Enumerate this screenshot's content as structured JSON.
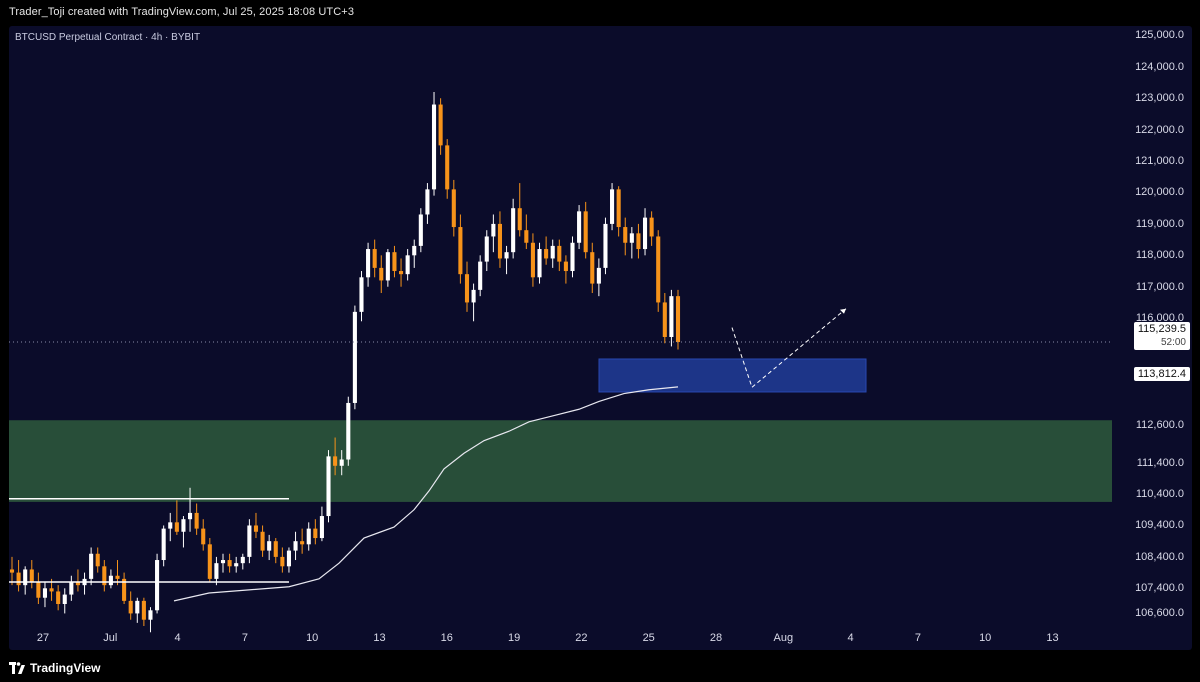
{
  "header": {
    "attribution": "Trader_Toji created with TradingView.com, Jul 25, 2025 18:08 UTC+3"
  },
  "chart": {
    "symbol_label": "BTCUSD Perpetual Contract · 4h · BYBIT",
    "current_price": "115,239.5",
    "countdown": "52:00",
    "ma_value": "113,812.4",
    "colors": {
      "background": "#0b0c2a",
      "up_candle": "#ffffff",
      "down_candle": "#f7931a",
      "demand_zone": "#2e5a3c",
      "target_zone": "#1f3a93",
      "moving_average": "#e8e8f0"
    }
  },
  "price_axis": {
    "ticks": [
      "125,000.0",
      "124,000.0",
      "123,000.0",
      "122,000.0",
      "121,000.0",
      "120,000.0",
      "119,000.0",
      "118,000.0",
      "117,000.0",
      "116,000.0",
      "112,600.0",
      "111,400.0",
      "110,400.0",
      "109,400.0",
      "108,400.0",
      "107,400.0",
      "106,600.0"
    ]
  },
  "time_axis": {
    "ticks": [
      "27",
      "Jul",
      "4",
      "7",
      "10",
      "13",
      "16",
      "19",
      "22",
      "25",
      "28",
      "Aug",
      "4",
      "7",
      "10",
      "13"
    ]
  },
  "footer": {
    "brand": "TradingView"
  },
  "chart_data": {
    "type": "candlestick",
    "title": "BTCUSD Perpetual Contract · 4h · BYBIT",
    "timeframe": "4h",
    "x_labels": [
      "27",
      "Jul",
      "4",
      "7",
      "10",
      "13",
      "16",
      "19",
      "22",
      "25",
      "28",
      "Aug",
      "4",
      "7",
      "10",
      "13"
    ],
    "ylim": [
      106200,
      125300
    ],
    "last_price": 115239.5,
    "moving_average_last": 113812.4,
    "zones": [
      {
        "name": "demand-zone",
        "low": 110150,
        "high": 112750,
        "color": "#2e5a3c"
      },
      {
        "name": "target-zone",
        "low": 113650,
        "high": 114700,
        "color": "#1f3a93"
      }
    ],
    "horizontal_levels": [
      110250,
      107600
    ],
    "projection": [
      [
        0,
        115700
      ],
      [
        1,
        113800
      ],
      [
        2,
        116300
      ]
    ],
    "candles": [
      [
        108000,
        108400,
        107500,
        107900
      ],
      [
        107900,
        108300,
        107300,
        107500
      ],
      [
        107500,
        108100,
        107200,
        108000
      ],
      [
        108000,
        108300,
        107400,
        107600
      ],
      [
        107600,
        107900,
        106900,
        107100
      ],
      [
        107100,
        107600,
        106800,
        107400
      ],
      [
        107400,
        107700,
        107000,
        107300
      ],
      [
        107300,
        107500,
        106700,
        106900
      ],
      [
        106900,
        107400,
        106600,
        107200
      ],
      [
        107200,
        107800,
        107000,
        107600
      ],
      [
        107600,
        108000,
        107300,
        107500
      ],
      [
        107500,
        107900,
        107200,
        107700
      ],
      [
        107700,
        108700,
        107500,
        108500
      ],
      [
        108500,
        108700,
        107900,
        108100
      ],
      [
        108100,
        108300,
        107300,
        107500
      ],
      [
        107500,
        108000,
        107400,
        107800
      ],
      [
        107800,
        108300,
        107500,
        107700
      ],
      [
        107700,
        107900,
        106900,
        107000
      ],
      [
        107000,
        107300,
        106400,
        106600
      ],
      [
        106600,
        107100,
        106300,
        107000
      ],
      [
        107000,
        107100,
        106200,
        106400
      ],
      [
        106400,
        106800,
        106000,
        106700
      ],
      [
        106700,
        108500,
        106600,
        108300
      ],
      [
        108300,
        109400,
        108100,
        109300
      ],
      [
        109300,
        109800,
        108900,
        109500
      ],
      [
        109500,
        110200,
        109100,
        109200
      ],
      [
        109200,
        109700,
        108700,
        109600
      ],
      [
        109600,
        110600,
        109200,
        109800
      ],
      [
        109800,
        110100,
        109100,
        109300
      ],
      [
        109300,
        109600,
        108600,
        108800
      ],
      [
        108800,
        109000,
        107600,
        107700
      ],
      [
        107700,
        108400,
        107500,
        108200
      ],
      [
        108200,
        108500,
        107900,
        108300
      ],
      [
        108300,
        108500,
        107900,
        108100
      ],
      [
        108100,
        108400,
        107900,
        108200
      ],
      [
        108200,
        108500,
        108000,
        108400
      ],
      [
        108400,
        109600,
        108200,
        109400
      ],
      [
        109400,
        109800,
        109000,
        109200
      ],
      [
        109200,
        109400,
        108400,
        108600
      ],
      [
        108600,
        109100,
        108300,
        108900
      ],
      [
        108900,
        109000,
        108200,
        108400
      ],
      [
        108400,
        108700,
        107900,
        108100
      ],
      [
        108100,
        108700,
        107900,
        108600
      ],
      [
        108600,
        109200,
        108300,
        108900
      ],
      [
        108900,
        109300,
        108500,
        108800
      ],
      [
        108800,
        109500,
        108600,
        109300
      ],
      [
        109300,
        109600,
        108800,
        109000
      ],
      [
        109000,
        110000,
        108900,
        109700
      ],
      [
        109700,
        111800,
        109500,
        111600
      ],
      [
        111600,
        112200,
        111000,
        111300
      ],
      [
        111300,
        111800,
        111000,
        111500
      ],
      [
        111500,
        113500,
        111300,
        113300
      ],
      [
        113300,
        116400,
        113100,
        116200
      ],
      [
        116200,
        117500,
        115900,
        117300
      ],
      [
        117300,
        118400,
        117000,
        118200
      ],
      [
        118200,
        118500,
        117300,
        117600
      ],
      [
        117600,
        118000,
        116800,
        117200
      ],
      [
        117200,
        118200,
        117000,
        118100
      ],
      [
        118100,
        118300,
        117300,
        117500
      ],
      [
        117500,
        117900,
        117000,
        117400
      ],
      [
        117400,
        118200,
        117200,
        118000
      ],
      [
        118000,
        118500,
        117600,
        118300
      ],
      [
        118300,
        119500,
        118100,
        119300
      ],
      [
        119300,
        120300,
        119000,
        120100
      ],
      [
        120100,
        123200,
        119900,
        122800
      ],
      [
        122800,
        123000,
        121200,
        121500
      ],
      [
        121500,
        121700,
        119800,
        120100
      ],
      [
        120100,
        120400,
        118600,
        118900
      ],
      [
        118900,
        119300,
        117100,
        117400
      ],
      [
        117400,
        117800,
        116200,
        116500
      ],
      [
        116500,
        117100,
        115900,
        116900
      ],
      [
        116900,
        118000,
        116700,
        117800
      ],
      [
        117800,
        118800,
        117500,
        118600
      ],
      [
        118600,
        119300,
        118100,
        119000
      ],
      [
        119000,
        119400,
        117600,
        117900
      ],
      [
        117900,
        118300,
        117400,
        118100
      ],
      [
        118100,
        119800,
        117900,
        119500
      ],
      [
        119500,
        120300,
        118600,
        118800
      ],
      [
        118800,
        119300,
        118200,
        118400
      ],
      [
        118400,
        118700,
        117000,
        117300
      ],
      [
        117300,
        118400,
        117100,
        118200
      ],
      [
        118200,
        118600,
        117700,
        117900
      ],
      [
        117900,
        118500,
        117600,
        118300
      ],
      [
        118300,
        118500,
        117500,
        117800
      ],
      [
        117800,
        118000,
        117100,
        117500
      ],
      [
        117500,
        118600,
        117300,
        118400
      ],
      [
        118400,
        119600,
        118200,
        119400
      ],
      [
        119400,
        119700,
        117900,
        118100
      ],
      [
        118100,
        118400,
        116800,
        117100
      ],
      [
        117100,
        117900,
        116700,
        117600
      ],
      [
        117600,
        119200,
        117400,
        119000
      ],
      [
        119000,
        120300,
        118800,
        120100
      ],
      [
        120100,
        120200,
        118600,
        118900
      ],
      [
        118900,
        119200,
        118000,
        118400
      ],
      [
        118400,
        118900,
        117900,
        118700
      ],
      [
        118700,
        119000,
        117900,
        118200
      ],
      [
        118200,
        119500,
        118000,
        119200
      ],
      [
        119200,
        119400,
        118300,
        118600
      ],
      [
        118600,
        118800,
        116200,
        116500
      ],
      [
        116500,
        116800,
        115200,
        115400
      ],
      [
        115400,
        116900,
        115100,
        116700
      ],
      [
        116700,
        116900,
        115000,
        115240
      ]
    ]
  }
}
